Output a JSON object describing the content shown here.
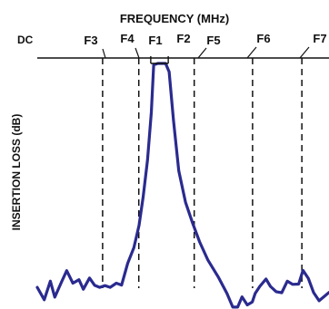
{
  "chart_data": {
    "type": "line",
    "title": "FREQUENCY (MHz)",
    "xlabel": "",
    "ylabel": "INSERTION LOSS (dB)",
    "origin_label": "DC",
    "markers": [
      {
        "label": "F1",
        "x": 0.389
      },
      {
        "label": "F2",
        "x": 0.449
      },
      {
        "label": "F3",
        "x": 0.224
      },
      {
        "label": "F4",
        "x": 0.348
      },
      {
        "label": "F5",
        "x": 0.538
      },
      {
        "label": "F6",
        "x": 0.738
      },
      {
        "label": "F7",
        "x": 0.907
      }
    ],
    "guide_lines": [
      "F3",
      "F4",
      "F5",
      "F6",
      "F7"
    ],
    "passband_bracket": [
      "F1",
      "F2"
    ],
    "series": [
      {
        "color": "#2a2a8f",
        "points": [
          [
            0.0,
            0.085
          ],
          [
            0.024,
            0.034
          ],
          [
            0.045,
            0.11
          ],
          [
            0.06,
            0.045
          ],
          [
            0.083,
            0.106
          ],
          [
            0.101,
            0.153
          ],
          [
            0.122,
            0.102
          ],
          [
            0.143,
            0.116
          ],
          [
            0.158,
            0.077
          ],
          [
            0.179,
            0.123
          ],
          [
            0.197,
            0.093
          ],
          [
            0.214,
            0.085
          ],
          [
            0.232,
            0.092
          ],
          [
            0.25,
            0.085
          ],
          [
            0.271,
            0.102
          ],
          [
            0.289,
            0.094
          ],
          [
            0.31,
            0.183
          ],
          [
            0.331,
            0.247
          ],
          [
            0.349,
            0.338
          ],
          [
            0.363,
            0.454
          ],
          [
            0.378,
            0.605
          ],
          [
            0.391,
            0.8
          ],
          [
            0.399,
            0.994
          ],
          [
            0.413,
            1.0
          ],
          [
            0.428,
            1.0
          ],
          [
            0.44,
            1.0
          ],
          [
            0.452,
            0.966
          ],
          [
            0.467,
            0.767
          ],
          [
            0.485,
            0.561
          ],
          [
            0.508,
            0.433
          ],
          [
            0.532,
            0.349
          ],
          [
            0.556,
            0.272
          ],
          [
            0.585,
            0.196
          ],
          [
            0.62,
            0.128
          ],
          [
            0.65,
            0.06
          ],
          [
            0.67,
            0.004
          ],
          [
            0.687,
            0.004
          ],
          [
            0.702,
            0.046
          ],
          [
            0.72,
            0.013
          ],
          [
            0.737,
            0.025
          ],
          [
            0.747,
            0.06
          ],
          [
            0.763,
            0.089
          ],
          [
            0.784,
            0.119
          ],
          [
            0.799,
            0.089
          ],
          [
            0.819,
            0.067
          ],
          [
            0.838,
            0.063
          ],
          [
            0.857,
            0.11
          ],
          [
            0.875,
            0.097
          ],
          [
            0.896,
            0.098
          ],
          [
            0.911,
            0.154
          ],
          [
            0.929,
            0.122
          ],
          [
            0.947,
            0.064
          ],
          [
            0.966,
            0.03
          ],
          [
            0.982,
            0.046
          ],
          [
            1.0,
            0.064
          ]
        ]
      }
    ],
    "grid": false
  }
}
